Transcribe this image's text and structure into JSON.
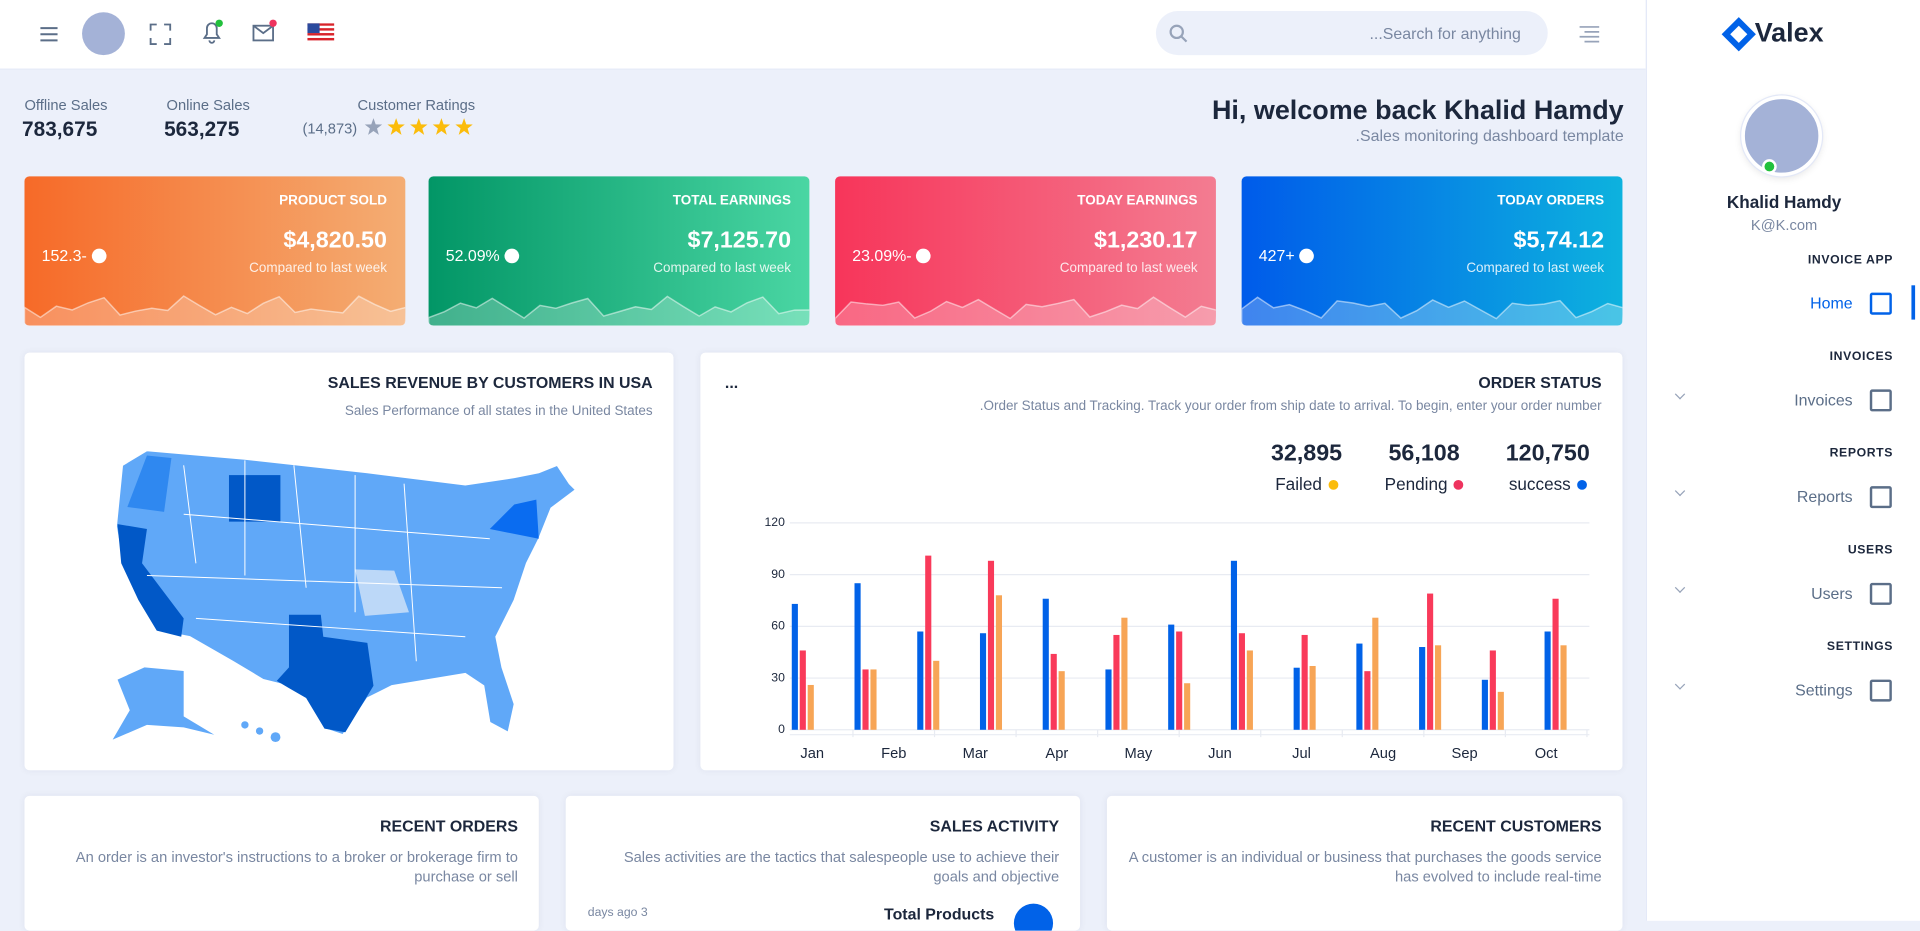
{
  "header": {
    "search_placeholder": "...Search for anything"
  },
  "sidebar": {
    "brand": "Valex",
    "user_name": "Khalid Hamdy",
    "user_email": "K@K.com",
    "sections": [
      {
        "title": "INVOICE APP",
        "item": "Home"
      },
      {
        "title": "INVOICES",
        "item": "Invoices"
      },
      {
        "title": "REPORTS",
        "item": "Reports"
      },
      {
        "title": "USERS",
        "item": "Users"
      },
      {
        "title": "SETTINGS",
        "item": "Settings"
      }
    ]
  },
  "stats": [
    {
      "label": "Offline Sales",
      "value": "783,675"
    },
    {
      "label": "Online Sales",
      "value": "563,275"
    }
  ],
  "ratings": {
    "label": "Customer Ratings",
    "count": "(14,873)"
  },
  "welcome": {
    "title": "Hi, welcome back Khalid Hamdy",
    "subtitle": ".Sales monitoring dashboard template"
  },
  "cards": [
    {
      "title": "PRODUCT SOLD",
      "value": "$4,820.50",
      "change": "152.3-",
      "note": "Compared to last week"
    },
    {
      "title": "TOTAL EARNINGS",
      "value": "$7,125.70",
      "change": "52.09%",
      "note": "Compared to last week"
    },
    {
      "title": "TODAY EARNINGS",
      "value": "$1,230.17",
      "change": "23.09%-",
      "note": "Compared to last week"
    },
    {
      "title": "TODAY ORDERS",
      "value": "$5,74.12",
      "change": "427+",
      "note": "Compared to last week"
    }
  ],
  "map_panel": {
    "title": "SALES REVENUE BY CUSTOMERS IN USA",
    "subtitle": "Sales Performance of all states in the United States"
  },
  "order_panel": {
    "menu": "...",
    "title": "ORDER STATUS",
    "subtitle": ".Order Status and Tracking. Track your order from ship date to arrival. To begin, enter your order number",
    "stats": [
      {
        "value": "32,895",
        "label": "Failed",
        "color": "#fbbc0b"
      },
      {
        "value": "56,108",
        "label": "Pending",
        "color": "#ee335e"
      },
      {
        "value": "120,750",
        "label": "success",
        "color": "#0162e8"
      }
    ]
  },
  "chart_data": {
    "type": "bar",
    "categories": [
      null,
      null,
      null,
      null,
      null,
      null,
      null,
      null,
      null,
      null,
      null,
      null,
      null
    ],
    "xlabels": [
      "Jan",
      "Feb",
      "Mar",
      "Apr",
      "May",
      "Jun",
      "Jul",
      "Aug",
      "Sep",
      "Oct"
    ],
    "series": [
      {
        "color": "#0162e8",
        "values": [
          73,
          85,
          57,
          56,
          76,
          35,
          61,
          98,
          36,
          50,
          48,
          29,
          57
        ]
      },
      {
        "color": "#f93a5a",
        "values": [
          46,
          35,
          101,
          98,
          44,
          55,
          57,
          56,
          55,
          34,
          79,
          46,
          76
        ]
      },
      {
        "color": "#f7a556",
        "values": [
          26,
          35,
          40,
          78,
          34,
          65,
          27,
          46,
          37,
          65,
          49,
          22,
          49
        ]
      }
    ],
    "ylim": [
      0,
      120
    ],
    "yticks": [
      0,
      30,
      60,
      90,
      120
    ],
    "grid": true
  },
  "bottom": [
    {
      "title": "RECENT ORDERS",
      "text": "An order is an investor's instructions to a broker or brokerage firm to purchase or sell"
    },
    {
      "title": "SALES ACTIVITY",
      "text": "Sales activities are the tactics that salespeople use to achieve their goals and objective",
      "time": "days ago 3",
      "item": "Total Products"
    },
    {
      "title": "RECENT CUSTOMERS",
      "text": "A customer is an individual or business that purchases the goods service has evolved to include real-time"
    }
  ]
}
